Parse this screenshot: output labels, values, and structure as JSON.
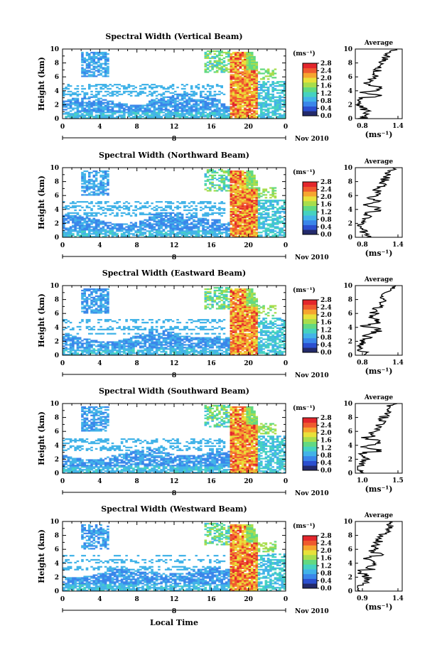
{
  "chart_data": [
    {
      "type": "heatmap",
      "title": "Spectral Width (Vertical Beam)",
      "ylabel": "Height (km)",
      "ylim": [
        0,
        10
      ],
      "yticks": [
        "0",
        "2",
        "4",
        "6",
        "8",
        "10"
      ],
      "xlim": [
        0,
        24
      ],
      "xticks": [
        "0",
        "4",
        "8",
        "12",
        "16",
        "20",
        "0"
      ],
      "date_label": "Nov 2010",
      "date_marker": "8",
      "colorbar_unit": "(ms⁻¹)",
      "colorbar_ticks": [
        "0.0",
        "0.4",
        "0.8",
        "1.2",
        "1.6",
        "2.0",
        "2.4",
        "2.8"
      ],
      "profile": {
        "title": "Average",
        "xlabel": "(ms⁻¹)",
        "xticks": [
          "0.8",
          "1.4"
        ],
        "ylim": [
          0,
          10
        ],
        "yticks": [
          "0",
          "2",
          "4",
          "6",
          "8",
          "10"
        ]
      }
    },
    {
      "type": "heatmap",
      "title": "Spectral Width (Northward Beam)",
      "ylabel": "Height (km)",
      "ylim": [
        0,
        10
      ],
      "yticks": [
        "0",
        "2",
        "4",
        "6",
        "8",
        "10"
      ],
      "xlim": [
        0,
        24
      ],
      "xticks": [
        "0",
        "4",
        "8",
        "12",
        "16",
        "20",
        "0"
      ],
      "date_label": "Nov 2010",
      "date_marker": "8",
      "colorbar_unit": "(ms⁻¹)",
      "colorbar_ticks": [
        "0.0",
        "0.4",
        "0.8",
        "1.2",
        "1.6",
        "2.0",
        "2.4",
        "2.8"
      ],
      "profile": {
        "title": "Average",
        "xlabel": "(ms⁻¹)",
        "xticks": [
          "0.8",
          "1.4"
        ],
        "ylim": [
          0,
          10
        ],
        "yticks": [
          "0",
          "2",
          "4",
          "6",
          "8",
          "10"
        ]
      }
    },
    {
      "type": "heatmap",
      "title": "Spectral Width (Eastward Beam)",
      "ylabel": "Height (km)",
      "ylim": [
        0,
        10
      ],
      "yticks": [
        "0",
        "2",
        "4",
        "6",
        "8",
        "10"
      ],
      "xlim": [
        0,
        24
      ],
      "xticks": [
        "0",
        "4",
        "8",
        "12",
        "16",
        "20",
        "0"
      ],
      "date_label": "Nov 2010",
      "date_marker": "8",
      "colorbar_unit": "(ms⁻¹)",
      "colorbar_ticks": [
        "0.0",
        "0.4",
        "0.8",
        "1.2",
        "1.6",
        "2.0",
        "2.4",
        "2.8"
      ],
      "profile": {
        "title": "Average",
        "xlabel": "(ms⁻¹)",
        "xticks": [
          "0.8",
          "1.4"
        ],
        "ylim": [
          0,
          10
        ],
        "yticks": [
          "0",
          "2",
          "4",
          "6",
          "8",
          "10"
        ]
      }
    },
    {
      "type": "heatmap",
      "title": "Spectral Width (Southward Beam)",
      "ylabel": "Height (km)",
      "ylim": [
        0,
        10
      ],
      "yticks": [
        "0",
        "2",
        "4",
        "6",
        "8",
        "10"
      ],
      "xlim": [
        0,
        24
      ],
      "xticks": [
        "0",
        "4",
        "8",
        "12",
        "16",
        "20",
        "0"
      ],
      "date_label": "Nov 2010",
      "date_marker": "8",
      "colorbar_unit": "(ms⁻¹)",
      "colorbar_ticks": [
        "0.0",
        "0.4",
        "0.8",
        "1.2",
        "1.6",
        "2.0",
        "2.4",
        "2.8"
      ],
      "profile": {
        "title": "Average",
        "xlabel": "(ms⁻¹)",
        "xticks": [
          "1.0",
          "1.5"
        ],
        "ylim": [
          0,
          10
        ],
        "yticks": [
          "0",
          "2",
          "4",
          "6",
          "8",
          "10"
        ]
      }
    },
    {
      "type": "heatmap",
      "title": "Spectral Width (Westward Beam)",
      "ylabel": "Height (km)",
      "ylim": [
        0,
        10
      ],
      "yticks": [
        "0",
        "2",
        "4",
        "6",
        "8",
        "10"
      ],
      "xlim": [
        0,
        24
      ],
      "xticks": [
        "0",
        "4",
        "8",
        "12",
        "16",
        "20",
        "0"
      ],
      "date_label": "Nov 2010",
      "date_marker": "8",
      "colorbar_unit": "(ms⁻¹)",
      "colorbar_ticks": [
        "0.0",
        "0.4",
        "0.8",
        "1.2",
        "1.6",
        "2.0",
        "2.4",
        "2.8"
      ],
      "profile": {
        "title": "Average",
        "xlabel": "(ms⁻¹)",
        "xticks": [
          "0.9",
          "1.4"
        ],
        "ylim": [
          0,
          10
        ],
        "yticks": [
          "0",
          "2",
          "4",
          "6",
          "8",
          "10"
        ]
      }
    }
  ],
  "xlabel": "Local Time",
  "colorscale": [
    "#232a6b",
    "#2b4fcf",
    "#3a86ea",
    "#42b3e8",
    "#45d2c0",
    "#62d981",
    "#a8dd4c",
    "#e8e13a",
    "#f6a52f",
    "#ef5a2f",
    "#e3262c"
  ]
}
